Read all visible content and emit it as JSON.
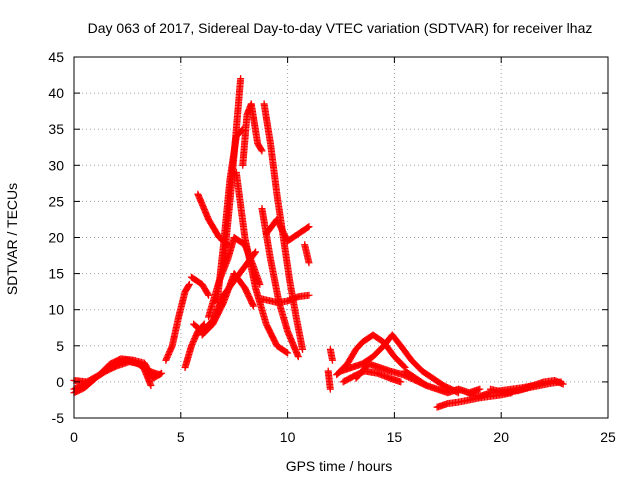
{
  "chart_data": {
    "type": "scatter",
    "title": "Day 063 of 2017, Sidereal Day-to-day VTEC variation (SDTVAR) for receiver lhaz",
    "xlabel": "GPS time / hours",
    "ylabel": "SDTVAR / TECUs",
    "xlim": [
      0,
      25
    ],
    "ylim": [
      -5,
      45
    ],
    "xticks": [
      0,
      5,
      10,
      15,
      20,
      25
    ],
    "yticks": [
      -5,
      0,
      5,
      10,
      15,
      20,
      25,
      30,
      35,
      40,
      45
    ],
    "grid": true,
    "marker": "+",
    "series": [
      {
        "name": "SDTVAR",
        "color": "#ff0000",
        "tracks": [
          [
            [
              0,
              -1.5
            ],
            [
              0.5,
              -0.8
            ],
            [
              1.0,
              0.5
            ],
            [
              1.5,
              1.8
            ],
            [
              2.0,
              2.8
            ],
            [
              2.5,
              3.0
            ],
            [
              3.0,
              2.5
            ],
            [
              3.5,
              1.5
            ],
            [
              4.0,
              1.0
            ]
          ],
          [
            [
              0,
              0.2
            ],
            [
              0.6,
              0.0
            ],
            [
              1.2,
              1.0
            ],
            [
              1.7,
              2.5
            ],
            [
              2.2,
              3.2
            ],
            [
              2.8,
              3.0
            ],
            [
              3.3,
              2.6
            ],
            [
              3.7,
              0.5
            ],
            [
              4.1,
              1.2
            ]
          ],
          [
            [
              0,
              -1.0
            ],
            [
              0.8,
              0.2
            ],
            [
              1.5,
              1.5
            ],
            [
              2.0,
              2.2
            ],
            [
              2.6,
              2.8
            ],
            [
              3.2,
              2.4
            ],
            [
              3.6,
              -0.5
            ]
          ],
          [
            [
              4.3,
              3.0
            ],
            [
              4.6,
              5.0
            ],
            [
              4.9,
              9.0
            ],
            [
              5.2,
              12.5
            ],
            [
              5.4,
              13.5
            ]
          ],
          [
            [
              5.2,
              2.0
            ],
            [
              5.5,
              5.0
            ],
            [
              5.8,
              7.0
            ],
            [
              6.1,
              8.0
            ]
          ],
          [
            [
              5.5,
              14.5
            ],
            [
              6.0,
              13.5
            ],
            [
              6.3,
              12.0
            ]
          ],
          [
            [
              5.6,
              8.0
            ],
            [
              6.0,
              7.0
            ],
            [
              6.5,
              8.5
            ],
            [
              7.0,
              12.0
            ],
            [
              7.5,
              14.0
            ],
            [
              8.0,
              16.0
            ],
            [
              8.5,
              18.0
            ]
          ],
          [
            [
              5.8,
              26.0
            ],
            [
              6.3,
              22.5
            ],
            [
              6.8,
              20.0
            ],
            [
              7.2,
              19.0
            ]
          ],
          [
            [
              6.0,
              6.5
            ],
            [
              6.5,
              8.0
            ],
            [
              7.0,
              11.0
            ],
            [
              7.5,
              15.0
            ],
            [
              8.0,
              13.0
            ],
            [
              8.4,
              10.5
            ]
          ],
          [
            [
              6.3,
              9.0
            ],
            [
              6.8,
              14.0
            ],
            [
              7.2,
              17.0
            ],
            [
              7.5,
              20.0
            ],
            [
              8.0,
              19.0
            ],
            [
              8.4,
              16.0
            ],
            [
              8.7,
              13.5
            ]
          ],
          [
            [
              7.0,
              16.0
            ],
            [
              7.3,
              25.0
            ],
            [
              7.6,
              35.0
            ],
            [
              7.8,
              42.0
            ]
          ],
          [
            [
              6.7,
              11.0
            ],
            [
              7.0,
              19.0
            ],
            [
              7.3,
              28.0
            ],
            [
              7.6,
              34.0
            ],
            [
              7.9,
              35.0
            ]
          ],
          [
            [
              7.9,
              30.0
            ],
            [
              8.1,
              37.0
            ],
            [
              8.3,
              38.5
            ],
            [
              8.6,
              33.0
            ],
            [
              8.8,
              32.0
            ]
          ],
          [
            [
              7.6,
              29.0
            ],
            [
              8.0,
              20.0
            ],
            [
              8.5,
              13.0
            ],
            [
              9.0,
              8.0
            ],
            [
              9.5,
              5.0
            ],
            [
              10.0,
              4.0
            ]
          ],
          [
            [
              8.8,
              24.0
            ],
            [
              9.2,
              17.0
            ],
            [
              9.6,
              11.0
            ],
            [
              10.0,
              7.0
            ],
            [
              10.5,
              3.5
            ]
          ],
          [
            [
              8.9,
              38.5
            ],
            [
              9.2,
              33.0
            ],
            [
              9.5,
              26.0
            ],
            [
              9.8,
              20.0
            ],
            [
              10.1,
              14.0
            ],
            [
              10.4,
              9.0
            ],
            [
              10.7,
              4.5
            ]
          ],
          [
            [
              9.0,
              20.5
            ],
            [
              9.5,
              22.5
            ],
            [
              10.0,
              19.5
            ],
            [
              10.5,
              20.5
            ],
            [
              11.0,
              21.5
            ]
          ],
          [
            [
              8.8,
              11.5
            ],
            [
              9.5,
              11.0
            ],
            [
              10.0,
              11.2
            ],
            [
              10.5,
              11.8
            ],
            [
              11.0,
              12.0
            ]
          ],
          [
            [
              10.8,
              19.0
            ],
            [
              11.0,
              16.5
            ]
          ],
          [
            [
              12.0,
              4.5
            ],
            [
              12.1,
              3.0
            ]
          ],
          [
            [
              11.9,
              1.5
            ],
            [
              12.0,
              -1.0
            ]
          ],
          [
            [
              12.3,
              1.0
            ],
            [
              12.8,
              2.5
            ],
            [
              13.2,
              4.5
            ],
            [
              13.5,
              5.5
            ],
            [
              14.0,
              6.5
            ],
            [
              14.5,
              5.5
            ],
            [
              15.0,
              3.5
            ],
            [
              15.5,
              2.0
            ]
          ],
          [
            [
              12.5,
              1.5
            ],
            [
              13.0,
              2.0
            ],
            [
              13.5,
              2.5
            ],
            [
              14.0,
              3.5
            ],
            [
              14.5,
              5.0
            ],
            [
              14.9,
              6.5
            ],
            [
              15.3,
              5.0
            ],
            [
              15.8,
              3.0
            ],
            [
              16.3,
              1.5
            ],
            [
              16.8,
              0.5
            ],
            [
              17.3,
              -0.5
            ],
            [
              18.0,
              -1.5
            ]
          ],
          [
            [
              12.6,
              0.0
            ],
            [
              13.1,
              0.8
            ],
            [
              13.6,
              1.5
            ],
            [
              14.2,
              1.2
            ],
            [
              14.8,
              0.5
            ],
            [
              15.3,
              0.0
            ]
          ],
          [
            [
              13.2,
              0.5
            ],
            [
              13.8,
              2.5
            ],
            [
              14.3,
              2.0
            ],
            [
              14.8,
              1.5
            ],
            [
              15.4,
              1.0
            ],
            [
              16.0,
              0.2
            ],
            [
              16.5,
              -0.5
            ]
          ],
          [
            [
              15.5,
              1.5
            ],
            [
              16.0,
              0.5
            ],
            [
              16.5,
              -0.5
            ],
            [
              17.0,
              -1.0
            ],
            [
              17.5,
              -1.5
            ],
            [
              18.0,
              -1.0
            ],
            [
              18.5,
              -1.5
            ],
            [
              19.0,
              -1.0
            ]
          ],
          [
            [
              17.0,
              -3.5
            ],
            [
              17.5,
              -3.0
            ],
            [
              18.0,
              -2.8
            ],
            [
              18.5,
              -2.5
            ],
            [
              19.0,
              -2.2
            ],
            [
              19.5,
              -2.0
            ],
            [
              20.0,
              -1.8
            ],
            [
              20.5,
              -1.5
            ]
          ],
          [
            [
              18.5,
              -1.8
            ],
            [
              19.0,
              -2.0
            ],
            [
              19.5,
              -1.5
            ],
            [
              20.0,
              -1.2
            ],
            [
              20.5,
              -1.0
            ],
            [
              21.0,
              -0.8
            ],
            [
              21.5,
              -0.5
            ]
          ],
          [
            [
              19.5,
              -1.0
            ],
            [
              20.2,
              -1.5
            ],
            [
              20.8,
              -1.2
            ],
            [
              21.3,
              -0.8
            ],
            [
              21.8,
              -0.5
            ],
            [
              22.3,
              -0.2
            ],
            [
              22.8,
              0.0
            ]
          ],
          [
            [
              20.5,
              -1.3
            ],
            [
              21.0,
              -1.0
            ],
            [
              21.5,
              -0.5
            ],
            [
              22.0,
              0.0
            ],
            [
              22.5,
              0.2
            ],
            [
              22.9,
              -0.3
            ]
          ]
        ]
      }
    ]
  }
}
